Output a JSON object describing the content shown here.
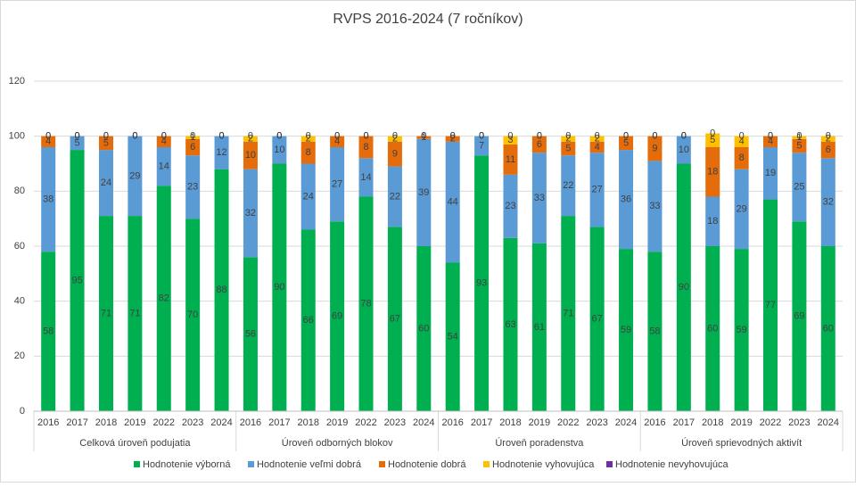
{
  "chart_data": {
    "type": "stacked_bar",
    "title": "RVPS 2016-2024 (7 ročníkov)",
    "groups": [
      {
        "name": "Celková úroveň podujatia",
        "categories": [
          "2016",
          "2017",
          "2018",
          "2019",
          "2022",
          "2023",
          "2024"
        ]
      },
      {
        "name": "Úroveň odborných blokov",
        "categories": [
          "2016",
          "2017",
          "2018",
          "2019",
          "2022",
          "2023",
          "2024"
        ]
      },
      {
        "name": "Úroveň poradenstva",
        "categories": [
          "2016",
          "2017",
          "2018",
          "2019",
          "2022",
          "2023",
          "2024"
        ]
      },
      {
        "name": "Úroveň sprievodných aktivít",
        "categories": [
          "2016",
          "2017",
          "2018",
          "2019",
          "2022",
          "2023",
          "2024"
        ]
      }
    ],
    "series": [
      {
        "name": "Hodnotenie výborná",
        "color": "#00b050",
        "values": [
          58,
          95,
          71,
          71,
          82,
          70,
          88,
          56,
          90,
          66,
          69,
          78,
          67,
          60,
          54,
          93,
          63,
          61,
          71,
          67,
          59,
          58,
          90,
          60,
          59,
          77,
          69,
          60
        ]
      },
      {
        "name": "Hodnotenie veľmi dobrá",
        "color": "#5b9bd5",
        "values": [
          38,
          5,
          24,
          29,
          14,
          23,
          12,
          32,
          10,
          24,
          27,
          14,
          22,
          39,
          44,
          7,
          23,
          33,
          22,
          27,
          36,
          33,
          10,
          18,
          29,
          19,
          25,
          32
        ]
      },
      {
        "name": "Hodnotenie dobrá",
        "color": "#e46c0a",
        "values": [
          4,
          0,
          5,
          0,
          4,
          6,
          0,
          10,
          0,
          8,
          4,
          8,
          9,
          1,
          2,
          0,
          11,
          6,
          5,
          4,
          5,
          9,
          0,
          18,
          8,
          4,
          5,
          6
        ]
      },
      {
        "name": "Hodnotenie vyhovujúca",
        "color": "#ffc000",
        "values": [
          0,
          0,
          0,
          0,
          0,
          1,
          0,
          2,
          0,
          2,
          0,
          0,
          2,
          0,
          0,
          0,
          3,
          0,
          2,
          2,
          0,
          0,
          0,
          5,
          4,
          0,
          1,
          2
        ]
      },
      {
        "name": "Hodnotenie nevyhovujúca",
        "color": "#7030a0",
        "values": [
          0,
          0,
          0,
          0,
          0,
          0,
          0,
          0,
          0,
          0,
          0,
          0,
          0,
          0,
          0,
          0,
          0,
          0,
          0,
          0,
          0,
          0,
          0,
          0,
          0,
          0,
          0,
          0
        ]
      }
    ],
    "ylim": [
      0,
      120
    ],
    "yticks": [
      0,
      20,
      40,
      60,
      80,
      100,
      120
    ],
    "grid": true
  }
}
